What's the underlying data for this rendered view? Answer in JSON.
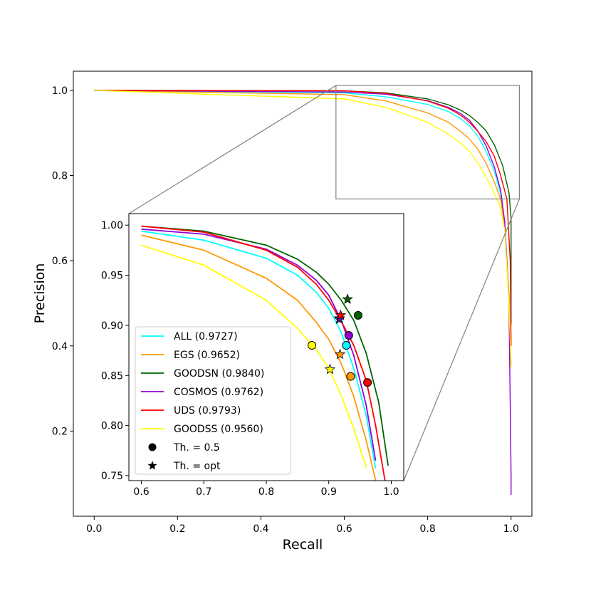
{
  "chart_data": {
    "type": "line",
    "title": "",
    "xlabel": "Recall",
    "ylabel": "Precision",
    "xlim": [
      -0.05,
      1.05
    ],
    "ylim": [
      0.0,
      1.045
    ],
    "xticks": [
      "0.0",
      "0.2",
      "0.4",
      "0.6",
      "0.8",
      "1.0"
    ],
    "yticks": [
      "0.2",
      "0.4",
      "0.6",
      "0.8",
      "1.0"
    ],
    "grid": false,
    "series": [
      {
        "name": "ALL (0.9727)",
        "color": "#00ffff",
        "points": [
          [
            0.6,
            0.994
          ],
          [
            0.7,
            0.985
          ],
          [
            0.8,
            0.967
          ],
          [
            0.85,
            0.95
          ],
          [
            0.88,
            0.933
          ],
          [
            0.9,
            0.917
          ],
          [
            0.92,
            0.893
          ],
          [
            0.94,
            0.857
          ],
          [
            0.96,
            0.81
          ],
          [
            0.975,
            0.757
          ],
          [
            0.985,
            0.68
          ],
          [
            0.995,
            0.52
          ],
          [
            1.0,
            0.35
          ]
        ],
        "threshold_05": [
          0.928,
          0.88
        ],
        "threshold_opt": [
          0.917,
          0.906
        ]
      },
      {
        "name": "EGS (0.9652)",
        "color": "#ff9900",
        "points": [
          [
            0.6,
            0.99
          ],
          [
            0.7,
            0.975
          ],
          [
            0.8,
            0.947
          ],
          [
            0.85,
            0.925
          ],
          [
            0.88,
            0.903
          ],
          [
            0.9,
            0.886
          ],
          [
            0.92,
            0.862
          ],
          [
            0.94,
            0.829
          ],
          [
            0.96,
            0.785
          ],
          [
            0.975,
            0.745
          ],
          [
            0.985,
            0.68
          ],
          [
            0.995,
            0.52
          ],
          [
            1.0,
            0.35
          ]
        ],
        "threshold_05": [
          0.935,
          0.849
        ],
        "threshold_opt": [
          0.918,
          0.871
        ]
      },
      {
        "name": "GOODSN (0.9840)",
        "color": "#006400",
        "points": [
          [
            0.6,
            0.999
          ],
          [
            0.7,
            0.994
          ],
          [
            0.8,
            0.98
          ],
          [
            0.85,
            0.966
          ],
          [
            0.88,
            0.953
          ],
          [
            0.9,
            0.941
          ],
          [
            0.92,
            0.925
          ],
          [
            0.94,
            0.905
          ],
          [
            0.96,
            0.872
          ],
          [
            0.98,
            0.823
          ],
          [
            0.995,
            0.76
          ],
          [
            1.0,
            0.7
          ],
          [
            1.0,
            0.45
          ]
        ],
        "threshold_05": [
          0.947,
          0.91
        ],
        "threshold_opt": [
          0.93,
          0.926
        ]
      },
      {
        "name": "COSMOS (0.9762)",
        "color": "#9400d3",
        "points": [
          [
            0.6,
            0.996
          ],
          [
            0.7,
            0.991
          ],
          [
            0.8,
            0.976
          ],
          [
            0.85,
            0.96
          ],
          [
            0.88,
            0.945
          ],
          [
            0.9,
            0.93
          ],
          [
            0.92,
            0.905
          ],
          [
            0.94,
            0.87
          ],
          [
            0.96,
            0.82
          ],
          [
            0.975,
            0.765
          ],
          [
            0.985,
            0.69
          ],
          [
            0.995,
            0.5
          ],
          [
            1.0,
            0.1
          ],
          [
            1.0,
            0.05
          ]
        ],
        "threshold_05": [
          0.932,
          0.89
        ],
        "threshold_opt": [
          0.917,
          0.907
        ]
      },
      {
        "name": "UDS (0.9793)",
        "color": "#ff0000",
        "points": [
          [
            0.6,
            0.999
          ],
          [
            0.7,
            0.993
          ],
          [
            0.8,
            0.975
          ],
          [
            0.85,
            0.958
          ],
          [
            0.88,
            0.941
          ],
          [
            0.9,
            0.925
          ],
          [
            0.92,
            0.904
          ],
          [
            0.94,
            0.88
          ],
          [
            0.96,
            0.845
          ],
          [
            0.975,
            0.8
          ],
          [
            0.99,
            0.745
          ],
          [
            0.998,
            0.6
          ],
          [
            1.0,
            0.4
          ]
        ],
        "threshold_05": [
          0.962,
          0.843
        ],
        "threshold_opt": [
          0.919,
          0.91
        ]
      },
      {
        "name": "GOODSS (0.9560)",
        "color": "#ffff00",
        "points": [
          [
            0.6,
            0.98
          ],
          [
            0.7,
            0.96
          ],
          [
            0.8,
            0.925
          ],
          [
            0.85,
            0.897
          ],
          [
            0.88,
            0.876
          ],
          [
            0.9,
            0.857
          ],
          [
            0.92,
            0.83
          ],
          [
            0.94,
            0.797
          ],
          [
            0.96,
            0.758
          ],
          [
            0.975,
            0.725
          ],
          [
            0.985,
            0.67
          ],
          [
            0.995,
            0.5
          ],
          [
            1.0,
            0.35
          ]
        ],
        "threshold_05": [
          0.873,
          0.88
        ],
        "threshold_opt": [
          0.902,
          0.856
        ]
      }
    ],
    "inset": {
      "xlim": [
        0.58,
        1.02
      ],
      "ylim": [
        0.745,
        1.0115
      ],
      "xticks": [
        "0.6",
        "0.7",
        "0.8",
        "0.9",
        "1.0"
      ],
      "yticks": [
        "0.75",
        "0.80",
        "0.85",
        "0.90",
        "0.95",
        "1.00"
      ]
    },
    "legend": {
      "placement": "lower-left of inset",
      "markers": [
        {
          "label": "Th. = 0.5",
          "marker": "circle"
        },
        {
          "label": "Th. = opt",
          "marker": "star"
        }
      ]
    }
  }
}
